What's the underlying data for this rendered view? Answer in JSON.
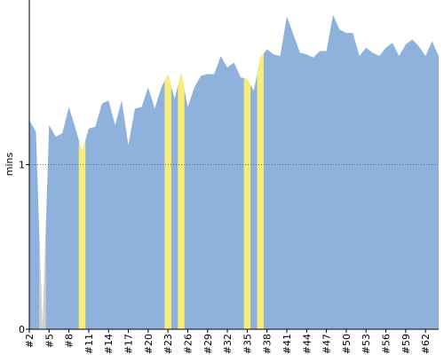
{
  "chart_data": {
    "type": "area",
    "y_label": "mins",
    "color": "#8fb2dc",
    "categories": [
      "#2",
      null,
      null,
      "#5",
      null,
      null,
      "#8",
      null,
      null,
      "#11",
      null,
      null,
      "#14",
      null,
      null,
      "#17",
      null,
      null,
      "#20",
      null,
      null,
      "#23",
      null,
      null,
      "#26",
      null,
      null,
      "#29",
      null,
      null,
      "#32",
      null,
      null,
      "#35",
      null,
      null,
      "#38",
      null,
      null,
      "#41",
      null,
      null,
      "#44",
      null,
      null,
      "#47",
      null,
      null,
      "#50",
      null,
      null,
      "#53",
      null,
      null,
      "#56",
      null,
      null,
      "#59",
      null,
      null,
      "#62",
      null,
      null
    ],
    "values": [
      1.27,
      1.2,
      0,
      1.24,
      1.17,
      1.19,
      1.35,
      1.22,
      1.08,
      1.22,
      1.23,
      1.37,
      1.39,
      1.24,
      1.39,
      1.12,
      1.34,
      1.35,
      1.47,
      1.34,
      1.47,
      1.55,
      1.4,
      1.56,
      1.35,
      1.47,
      1.54,
      1.55,
      1.55,
      1.66,
      1.59,
      1.62,
      1.53,
      1.52,
      1.45,
      1.65,
      1.7,
      1.67,
      1.66,
      1.9,
      1.79,
      1.68,
      1.67,
      1.65,
      1.69,
      1.69,
      1.91,
      1.82,
      1.8,
      1.8,
      1.66,
      1.71,
      1.68,
      1.66,
      1.71,
      1.74,
      1.66,
      1.73,
      1.76,
      1.72,
      1.66,
      1.75,
      1.66
    ],
    "band_colors": [
      null,
      null,
      "#d0d0d0",
      null,
      null,
      null,
      null,
      null,
      "#f7ee7a",
      null,
      null,
      null,
      null,
      null,
      null,
      null,
      null,
      null,
      null,
      null,
      null,
      "#f7ee7a",
      null,
      "#f7ee7a",
      null,
      null,
      null,
      null,
      null,
      null,
      null,
      null,
      null,
      "#f7ee7a",
      null,
      "#f7ee7a",
      null,
      null,
      null,
      null,
      null,
      null,
      null,
      null,
      null,
      null,
      null,
      null,
      null,
      null,
      null,
      null,
      null,
      null,
      null,
      null,
      null,
      null,
      null,
      null,
      null,
      null,
      null
    ],
    "ylim": [
      0,
      2
    ],
    "yticks": [
      0,
      1
    ],
    "grid": true
  }
}
